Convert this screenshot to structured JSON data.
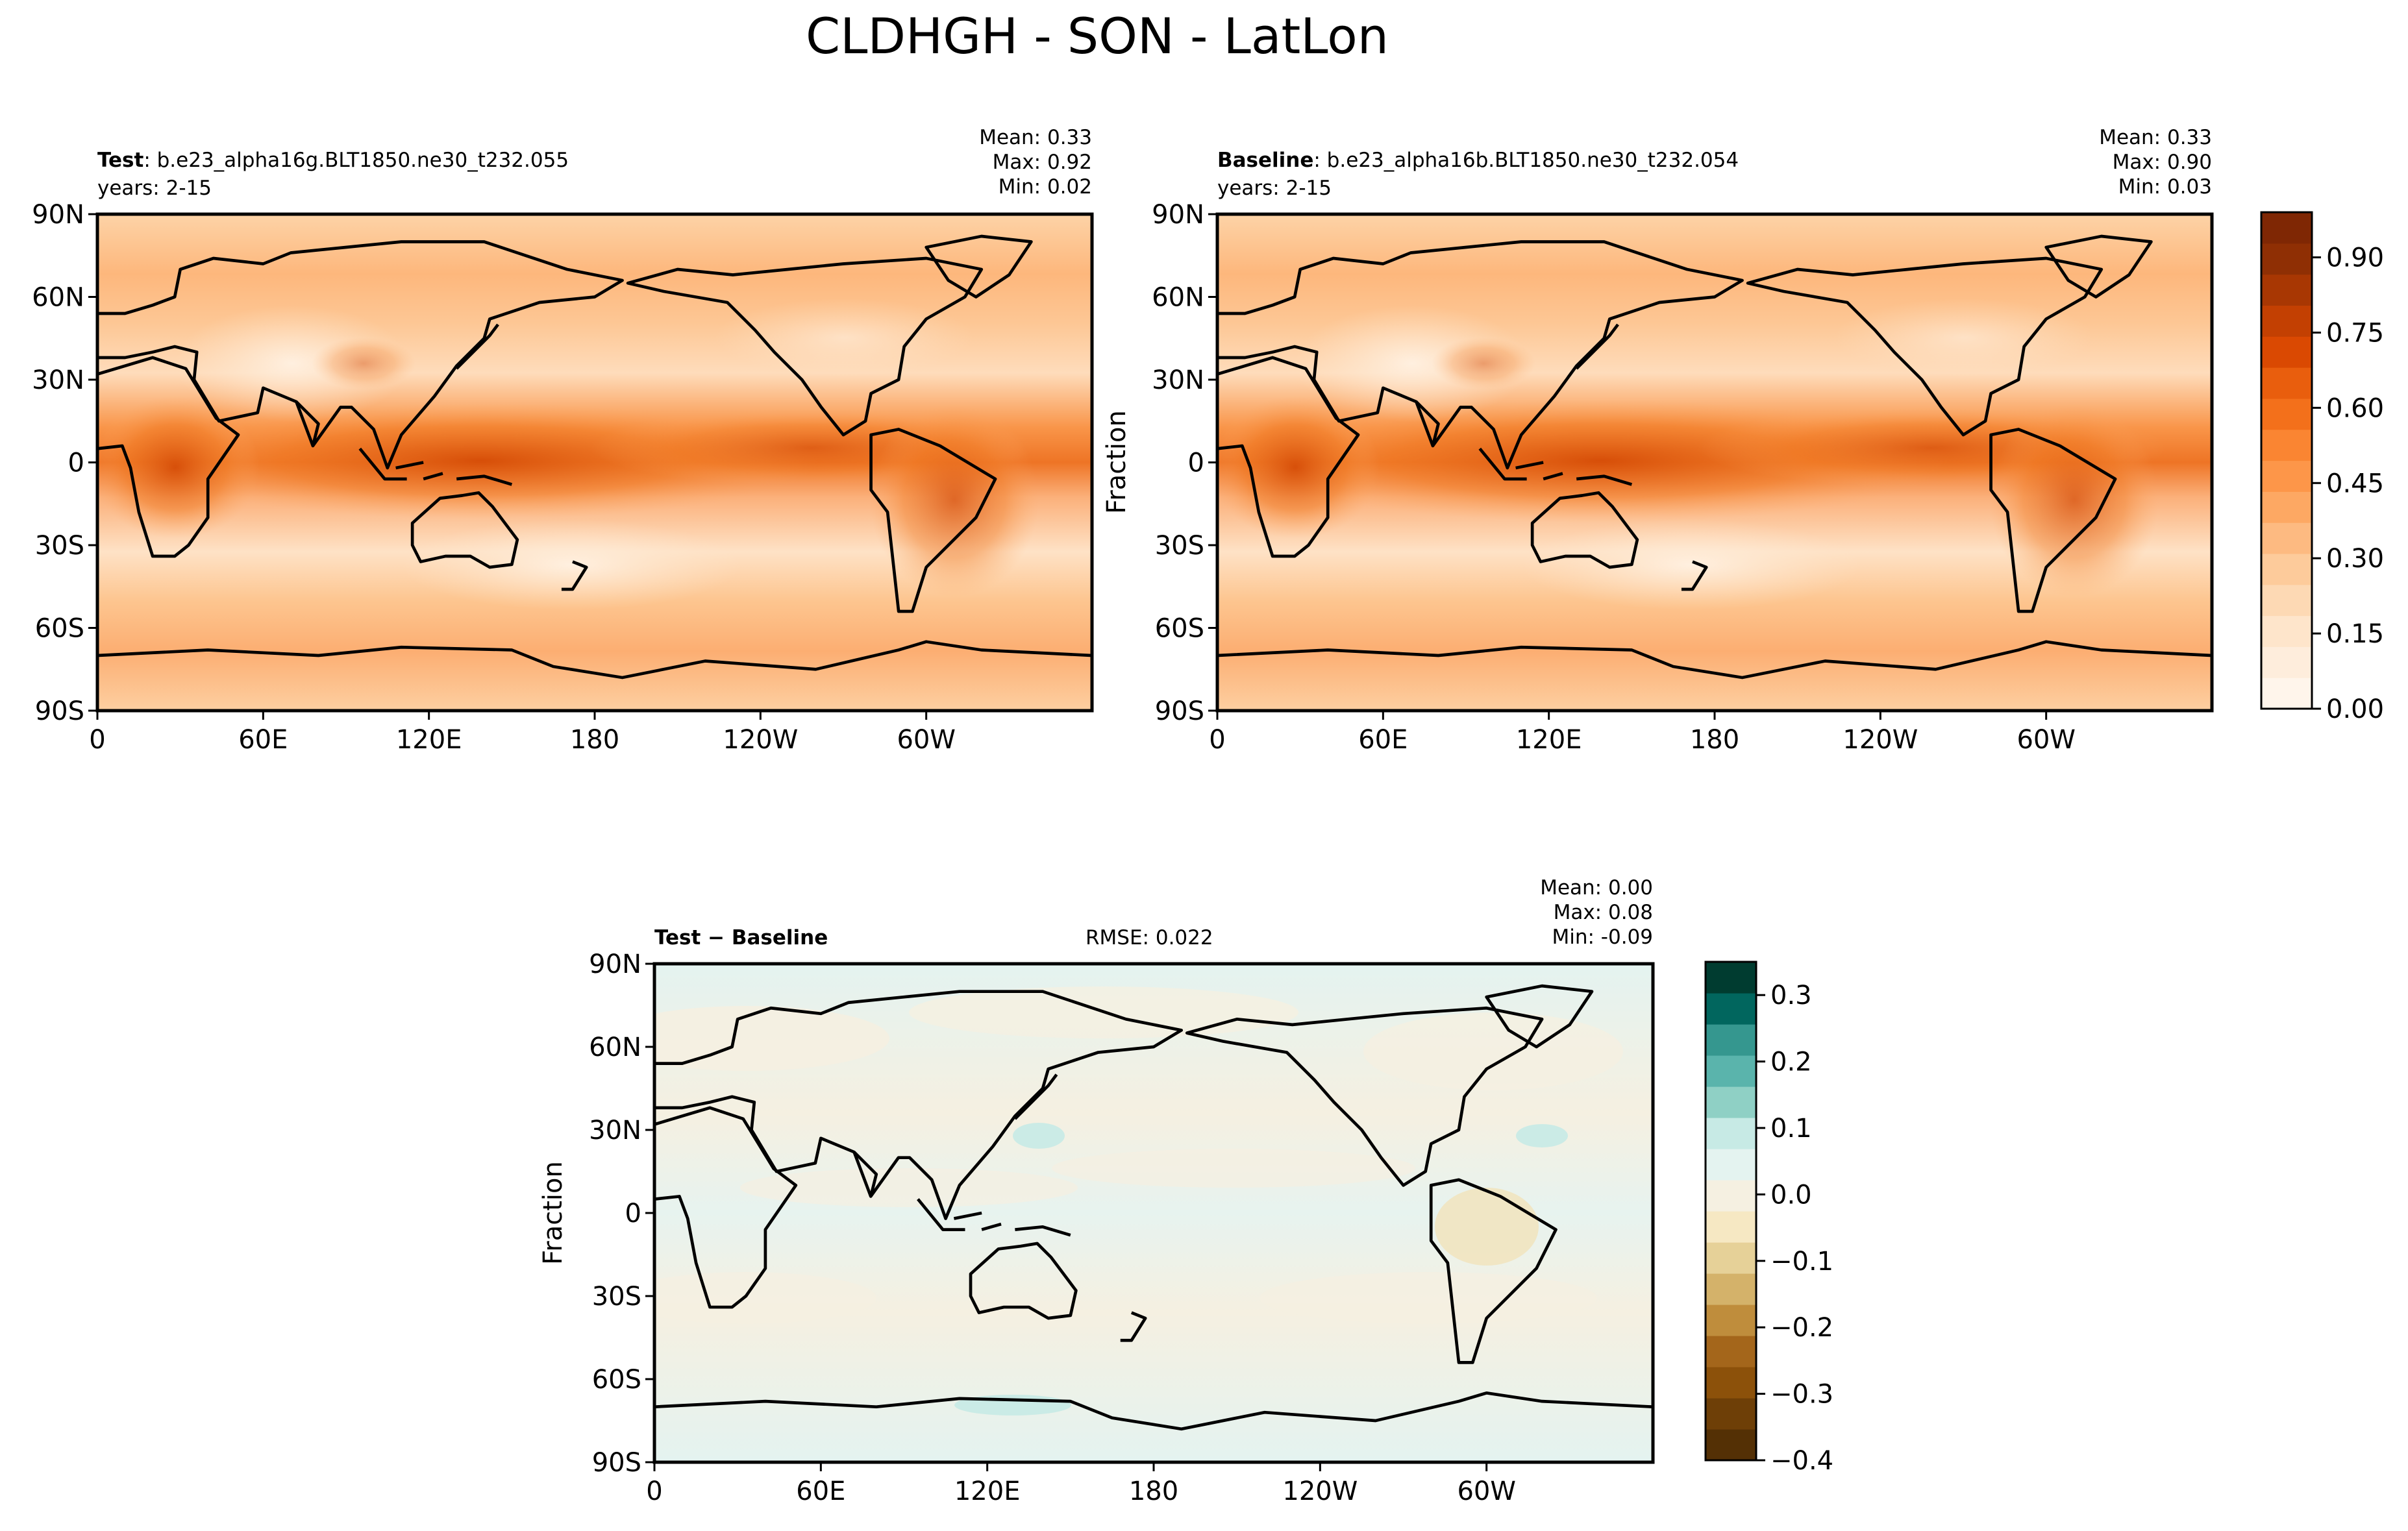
{
  "figure": {
    "title": "CLDHGH - SON - LatLon"
  },
  "panels": [
    {
      "id": "test",
      "label_bold": "Test",
      "label_rest": ": b.e23_alpha16g.BLT1850.ne30_t232.055",
      "years": "years: 2-15",
      "stats": {
        "mean": "Mean:  0.33",
        "max": "Max:  0.92",
        "min": "Min:  0.02"
      },
      "ylabel": ""
    },
    {
      "id": "baseline",
      "label_bold": "Baseline",
      "label_rest": ": b.e23_alpha16b.BLT1850.ne30_t232.054",
      "years": "years: 2-15",
      "stats": {
        "mean": "Mean:  0.33",
        "max": "Max:  0.90",
        "min": "Min:  0.03"
      },
      "ylabel": "Fraction"
    },
    {
      "id": "diff",
      "label_bold": "Test − Baseline",
      "rmse": "RMSE: 0.022",
      "stats": {
        "mean": "Mean:  0.00",
        "max": "Max:  0.08",
        "min": "Min: -0.09"
      },
      "ylabel": "Fraction"
    }
  ],
  "axes": {
    "lon_ticks": [
      "0",
      "60E",
      "120E",
      "180",
      "120W",
      "60W"
    ],
    "lat_ticks": [
      "90N",
      "60N",
      "30N",
      "0",
      "30S",
      "60S",
      "90S"
    ]
  },
  "colorbars": {
    "main": {
      "ticks": [
        "0.00",
        "0.15",
        "0.30",
        "0.45",
        "0.60",
        "0.75",
        "0.90"
      ],
      "colors": [
        "#fff5eb",
        "#feeddc",
        "#fee5cb",
        "#fdd9b4",
        "#fdcb9b",
        "#fdba81",
        "#fda863",
        "#fd9649",
        "#fa8532",
        "#f3701b",
        "#e95e0d",
        "#da4902",
        "#c34002",
        "#a83703",
        "#8f2f04",
        "#7f2704"
      ]
    },
    "diff": {
      "ticks": [
        "0.3",
        "0.2",
        "0.1",
        "0.0",
        "−0.1",
        "−0.2",
        "−0.3",
        "−0.4"
      ],
      "colors": [
        "#003c30",
        "#01665e",
        "#35978f",
        "#5ab4ac",
        "#8fd0c5",
        "#c7eae5",
        "#e4f3f0",
        "#f5f0e1",
        "#f6e8c3",
        "#e6d198",
        "#d4b26a",
        "#bf8d3c",
        "#a4661b",
        "#8c510a",
        "#6e3f07",
        "#543005"
      ]
    }
  },
  "chart_data": [
    {
      "type": "heatmap",
      "title": "Test: b.e23_alpha16g.BLT1850.ne30_t232.055",
      "xlabel": "",
      "ylabel": "",
      "x_ticks": [
        "0",
        "60E",
        "120E",
        "180",
        "120W",
        "60W"
      ],
      "y_ticks": [
        "90N",
        "60N",
        "30N",
        "0",
        "30S",
        "60S",
        "90S"
      ],
      "xlim": [
        0,
        360
      ],
      "ylim": [
        -90,
        90
      ],
      "value_range": [
        0.0,
        0.99
      ],
      "mean": 0.33,
      "max": 0.92,
      "min": 0.02
    },
    {
      "type": "heatmap",
      "title": "Baseline: b.e23_alpha16b.BLT1850.ne30_t232.054",
      "xlabel": "",
      "ylabel": "Fraction",
      "x_ticks": [
        "0",
        "60E",
        "120E",
        "180",
        "120W",
        "60W"
      ],
      "y_ticks": [
        "90N",
        "60N",
        "30N",
        "0",
        "30S",
        "60S",
        "90S"
      ],
      "xlim": [
        0,
        360
      ],
      "ylim": [
        -90,
        90
      ],
      "value_range": [
        0.0,
        0.99
      ],
      "mean": 0.33,
      "max": 0.9,
      "min": 0.03
    },
    {
      "type": "heatmap",
      "title": "Test − Baseline",
      "xlabel": "",
      "ylabel": "Fraction",
      "x_ticks": [
        "0",
        "60E",
        "120E",
        "180",
        "120W",
        "60W"
      ],
      "y_ticks": [
        "90N",
        "60N",
        "30N",
        "0",
        "30S",
        "60S",
        "90S"
      ],
      "xlim": [
        0,
        360
      ],
      "ylim": [
        -90,
        90
      ],
      "value_range": [
        -0.4,
        0.35
      ],
      "rmse": 0.022,
      "mean": 0.0,
      "max": 0.08,
      "min": -0.09
    }
  ]
}
